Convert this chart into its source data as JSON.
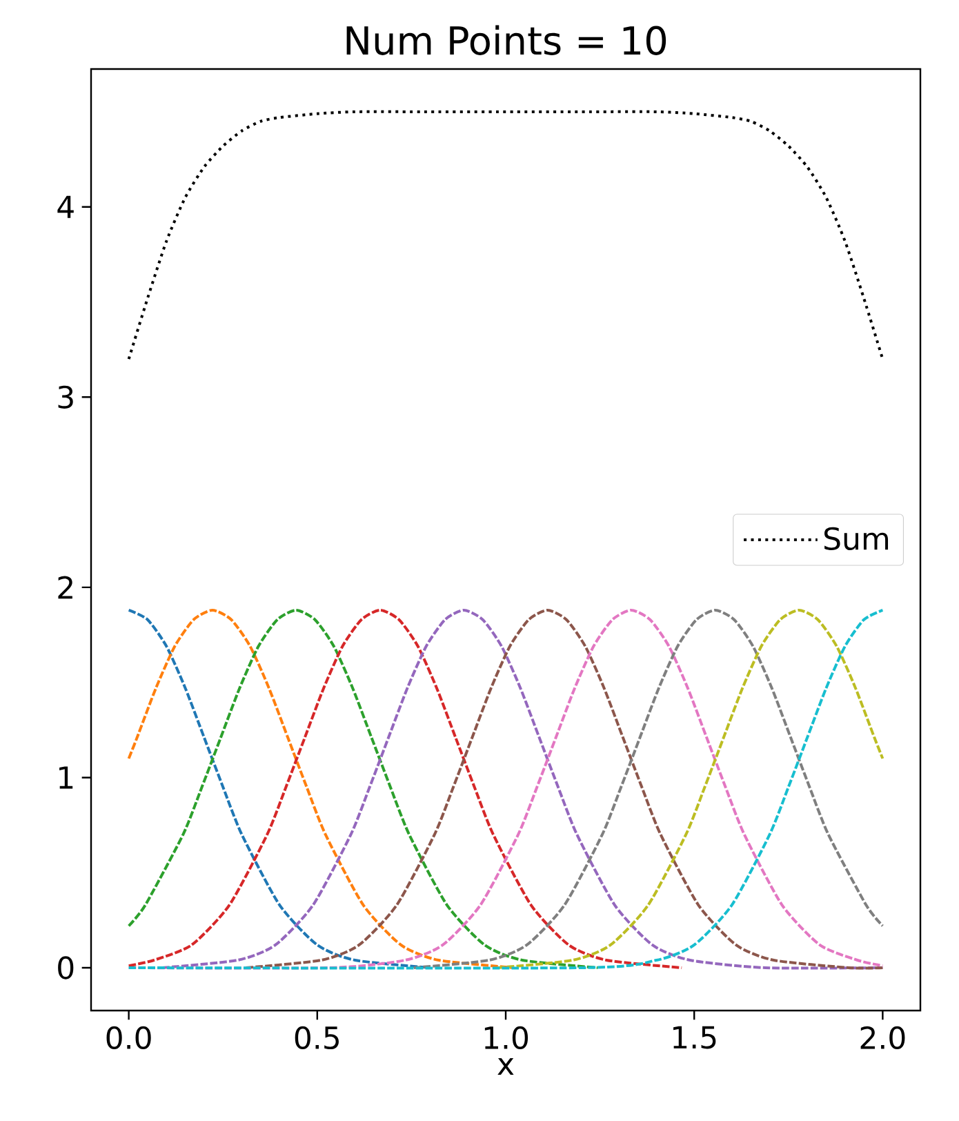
{
  "chart_data": {
    "type": "line",
    "title": "Num Points = 10",
    "xlabel": "x",
    "xlim": [
      -0.1,
      2.1
    ],
    "ylim": [
      -0.225,
      4.725
    ],
    "xticks": [
      {
        "value": 0,
        "label": "0.0"
      },
      {
        "value": 0.5,
        "label": "0.5"
      },
      {
        "value": 1,
        "label": "1.0"
      },
      {
        "value": 1.5,
        "label": "1.5"
      },
      {
        "value": 2,
        "label": "2.0"
      }
    ],
    "yticks": [
      0,
      1,
      2,
      3,
      4
    ],
    "legend": "right",
    "line_style": "dashed",
    "series": [
      {
        "color": "#1f77b4",
        "x": [
          0,
          0.05,
          0.1,
          0.15,
          0.2,
          0.25,
          0.3,
          0.4,
          0.5,
          0.6,
          0.8
        ],
        "values": [
          1.88,
          1.83,
          1.69,
          1.47,
          1.21,
          0.95,
          0.7,
          0.33,
          0.12,
          0.04,
          0.0
        ]
      },
      {
        "color": "#ff7f0e",
        "x": [
          0,
          0.022,
          0.072,
          0.122,
          0.172,
          0.222,
          0.272,
          0.322,
          0.372,
          0.422,
          0.472,
          0.522,
          0.622,
          0.722,
          0.822,
          1.022
        ],
        "values": [
          1.1,
          1.21,
          1.47,
          1.69,
          1.83,
          1.88,
          1.83,
          1.69,
          1.47,
          1.21,
          0.95,
          0.7,
          0.33,
          0.12,
          0.04,
          0.0
        ]
      },
      {
        "color": "#2ca02c",
        "x": [
          0,
          0.044,
          0.144,
          0.194,
          0.244,
          0.294,
          0.344,
          0.394,
          0.444,
          0.494,
          0.544,
          0.594,
          0.644,
          0.694,
          0.744,
          0.844,
          0.944,
          1.044,
          1.244
        ],
        "values": [
          0.22,
          0.33,
          0.7,
          0.95,
          1.21,
          1.47,
          1.69,
          1.83,
          1.88,
          1.83,
          1.69,
          1.47,
          1.21,
          0.95,
          0.7,
          0.33,
          0.12,
          0.04,
          0.0
        ]
      },
      {
        "color": "#d62728",
        "x": [
          0,
          0.067,
          0.167,
          0.267,
          0.367,
          0.417,
          0.467,
          0.517,
          0.567,
          0.617,
          0.667,
          0.717,
          0.767,
          0.817,
          0.867,
          0.917,
          0.967,
          1.067,
          1.167,
          1.267,
          1.467
        ],
        "values": [
          0.01,
          0.04,
          0.12,
          0.33,
          0.7,
          0.95,
          1.21,
          1.47,
          1.69,
          1.83,
          1.88,
          1.83,
          1.69,
          1.47,
          1.21,
          0.95,
          0.7,
          0.33,
          0.12,
          0.04,
          0.0
        ]
      },
      {
        "color": "#9467bd",
        "x": [
          0.089,
          0.289,
          0.389,
          0.489,
          0.589,
          0.639,
          0.689,
          0.739,
          0.789,
          0.839,
          0.889,
          0.939,
          0.989,
          1.039,
          1.089,
          1.139,
          1.189,
          1.289,
          1.389,
          1.489,
          1.689,
          2.0
        ],
        "values": [
          0.0,
          0.04,
          0.12,
          0.33,
          0.7,
          0.95,
          1.21,
          1.47,
          1.69,
          1.83,
          1.88,
          1.83,
          1.69,
          1.47,
          1.21,
          0.95,
          0.7,
          0.33,
          0.12,
          0.04,
          0.0,
          0
        ]
      },
      {
        "color": "#8c564b",
        "x": [
          0.311,
          0.511,
          0.611,
          0.711,
          0.811,
          0.861,
          0.911,
          0.961,
          1.011,
          1.061,
          1.111,
          1.161,
          1.211,
          1.261,
          1.311,
          1.361,
          1.411,
          1.511,
          1.611,
          1.711,
          1.911,
          2.0
        ],
        "values": [
          0.0,
          0.04,
          0.12,
          0.33,
          0.7,
          0.95,
          1.21,
          1.47,
          1.69,
          1.83,
          1.88,
          1.83,
          1.69,
          1.47,
          1.21,
          0.95,
          0.7,
          0.33,
          0.12,
          0.04,
          0.0,
          0
        ]
      },
      {
        "color": "#e377c2",
        "x": [
          0,
          0.533,
          0.733,
          0.833,
          0.933,
          1.033,
          1.083,
          1.133,
          1.183,
          1.233,
          1.283,
          1.333,
          1.383,
          1.433,
          1.483,
          1.533,
          1.583,
          1.633,
          1.733,
          1.833,
          1.933,
          2.0
        ],
        "values": [
          0,
          0.0,
          0.04,
          0.12,
          0.33,
          0.7,
          0.95,
          1.21,
          1.47,
          1.69,
          1.83,
          1.88,
          1.83,
          1.69,
          1.47,
          1.21,
          0.95,
          0.7,
          0.33,
          0.12,
          0.04,
          0.01
        ]
      },
      {
        "color": "#7f7f7f",
        "x": [
          0.756,
          0.956,
          1.056,
          1.156,
          1.256,
          1.306,
          1.356,
          1.406,
          1.456,
          1.506,
          1.556,
          1.606,
          1.656,
          1.706,
          1.756,
          1.806,
          1.856,
          1.956,
          2.0
        ],
        "values": [
          0.0,
          0.04,
          0.12,
          0.33,
          0.7,
          0.95,
          1.21,
          1.47,
          1.69,
          1.83,
          1.88,
          1.83,
          1.69,
          1.47,
          1.21,
          0.95,
          0.7,
          0.33,
          0.22
        ]
      },
      {
        "color": "#bcbd22",
        "x": [
          0.978,
          1.178,
          1.278,
          1.378,
          1.478,
          1.528,
          1.578,
          1.628,
          1.678,
          1.728,
          1.778,
          1.828,
          1.878,
          1.928,
          1.978,
          2.0
        ],
        "values": [
          0.0,
          0.04,
          0.12,
          0.33,
          0.7,
          0.95,
          1.21,
          1.47,
          1.69,
          1.83,
          1.88,
          1.83,
          1.69,
          1.47,
          1.21,
          1.1
        ]
      },
      {
        "color": "#17becf",
        "x": [
          0,
          1.2,
          1.4,
          1.5,
          1.6,
          1.7,
          1.75,
          1.8,
          1.85,
          1.9,
          1.95,
          2.0
        ],
        "values": [
          0,
          0.0,
          0.04,
          0.12,
          0.33,
          0.7,
          0.95,
          1.21,
          1.47,
          1.69,
          1.83,
          1.88
        ]
      },
      {
        "name": "Sum",
        "color": "#000000",
        "line_style": "dotted",
        "x": [
          0,
          0.05,
          0.1,
          0.15,
          0.2,
          0.25,
          0.3,
          0.35,
          0.4,
          0.5,
          0.6,
          0.8,
          1.0,
          1.2,
          1.4,
          1.5,
          1.6,
          1.65,
          1.7,
          1.75,
          1.8,
          1.85,
          1.9,
          1.95,
          2.0
        ],
        "values": [
          3.2,
          3.52,
          3.82,
          4.05,
          4.21,
          4.32,
          4.4,
          4.45,
          4.47,
          4.49,
          4.5,
          4.5,
          4.5,
          4.5,
          4.5,
          4.49,
          4.47,
          4.45,
          4.4,
          4.32,
          4.21,
          4.05,
          3.82,
          3.52,
          3.2
        ]
      }
    ]
  }
}
